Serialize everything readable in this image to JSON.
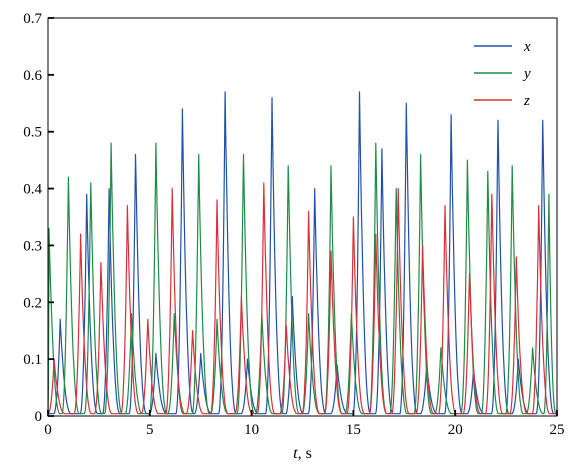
{
  "chart_data": {
    "type": "line",
    "title": "",
    "xlabel_var": "t",
    "xlabel_unit": ", s",
    "ylabel": "",
    "xlim": [
      0,
      25
    ],
    "ylim": [
      0,
      0.7
    ],
    "xticks": [
      0,
      5,
      10,
      15,
      20,
      25
    ],
    "yticks": [
      0,
      0.1,
      0.2,
      0.3,
      0.4,
      0.5,
      0.6,
      0.7
    ],
    "xtick_labels": [
      "0",
      "5",
      "10",
      "15",
      "20",
      "25"
    ],
    "ytick_labels": [
      "0",
      "0.1",
      "0.2",
      "0.3",
      "0.4",
      "0.5",
      "0.6",
      "0.7"
    ],
    "grid": false,
    "legend_position": "top-right",
    "series": [
      {
        "name": "x",
        "color": "#2050a8",
        "peaks": [
          {
            "t": 0.6,
            "v": 0.17
          },
          {
            "t": 1.9,
            "v": 0.39
          },
          {
            "t": 3.0,
            "v": 0.4
          },
          {
            "t": 4.3,
            "v": 0.46
          },
          {
            "t": 5.3,
            "v": 0.11
          },
          {
            "t": 6.6,
            "v": 0.54
          },
          {
            "t": 7.5,
            "v": 0.11
          },
          {
            "t": 8.7,
            "v": 0.57
          },
          {
            "t": 9.8,
            "v": 0.1
          },
          {
            "t": 11.0,
            "v": 0.56
          },
          {
            "t": 12.0,
            "v": 0.21
          },
          {
            "t": 13.1,
            "v": 0.4
          },
          {
            "t": 14.2,
            "v": 0.09
          },
          {
            "t": 15.3,
            "v": 0.57
          },
          {
            "t": 16.4,
            "v": 0.47
          },
          {
            "t": 17.6,
            "v": 0.55
          },
          {
            "t": 18.6,
            "v": 0.09
          },
          {
            "t": 19.8,
            "v": 0.53
          },
          {
            "t": 20.9,
            "v": 0.08
          },
          {
            "t": 22.1,
            "v": 0.52
          },
          {
            "t": 23.1,
            "v": 0.1
          },
          {
            "t": 24.3,
            "v": 0.52
          }
        ]
      },
      {
        "name": "y",
        "color": "#1e8c46",
        "peaks": [
          {
            "t": 0.05,
            "v": 0.33
          },
          {
            "t": 1.0,
            "v": 0.42
          },
          {
            "t": 2.1,
            "v": 0.41
          },
          {
            "t": 3.1,
            "v": 0.48
          },
          {
            "t": 4.1,
            "v": 0.18
          },
          {
            "t": 5.3,
            "v": 0.48
          },
          {
            "t": 6.2,
            "v": 0.18
          },
          {
            "t": 7.4,
            "v": 0.46
          },
          {
            "t": 8.3,
            "v": 0.17
          },
          {
            "t": 9.6,
            "v": 0.46
          },
          {
            "t": 10.5,
            "v": 0.18
          },
          {
            "t": 11.8,
            "v": 0.44
          },
          {
            "t": 12.8,
            "v": 0.18
          },
          {
            "t": 13.9,
            "v": 0.44
          },
          {
            "t": 14.9,
            "v": 0.18
          },
          {
            "t": 16.1,
            "v": 0.48
          },
          {
            "t": 17.1,
            "v": 0.4
          },
          {
            "t": 18.3,
            "v": 0.46
          },
          {
            "t": 19.3,
            "v": 0.12
          },
          {
            "t": 20.6,
            "v": 0.45
          },
          {
            "t": 21.6,
            "v": 0.43
          },
          {
            "t": 22.8,
            "v": 0.44
          },
          {
            "t": 23.8,
            "v": 0.12
          },
          {
            "t": 24.6,
            "v": 0.39
          }
        ]
      },
      {
        "name": "z",
        "color": "#d8303a",
        "peaks": [
          {
            "t": 0.3,
            "v": 0.1
          },
          {
            "t": 1.6,
            "v": 0.32
          },
          {
            "t": 2.6,
            "v": 0.27
          },
          {
            "t": 3.9,
            "v": 0.37
          },
          {
            "t": 4.9,
            "v": 0.17
          },
          {
            "t": 6.1,
            "v": 0.4
          },
          {
            "t": 7.1,
            "v": 0.15
          },
          {
            "t": 8.3,
            "v": 0.38
          },
          {
            "t": 9.5,
            "v": 0.21
          },
          {
            "t": 10.6,
            "v": 0.41
          },
          {
            "t": 11.7,
            "v": 0.16
          },
          {
            "t": 12.8,
            "v": 0.36
          },
          {
            "t": 13.9,
            "v": 0.29
          },
          {
            "t": 15.0,
            "v": 0.35
          },
          {
            "t": 16.1,
            "v": 0.32
          },
          {
            "t": 17.2,
            "v": 0.4
          },
          {
            "t": 18.4,
            "v": 0.3
          },
          {
            "t": 19.5,
            "v": 0.37
          },
          {
            "t": 20.7,
            "v": 0.25
          },
          {
            "t": 21.8,
            "v": 0.39
          },
          {
            "t": 23.0,
            "v": 0.28
          },
          {
            "t": 24.1,
            "v": 0.37
          }
        ]
      }
    ]
  }
}
